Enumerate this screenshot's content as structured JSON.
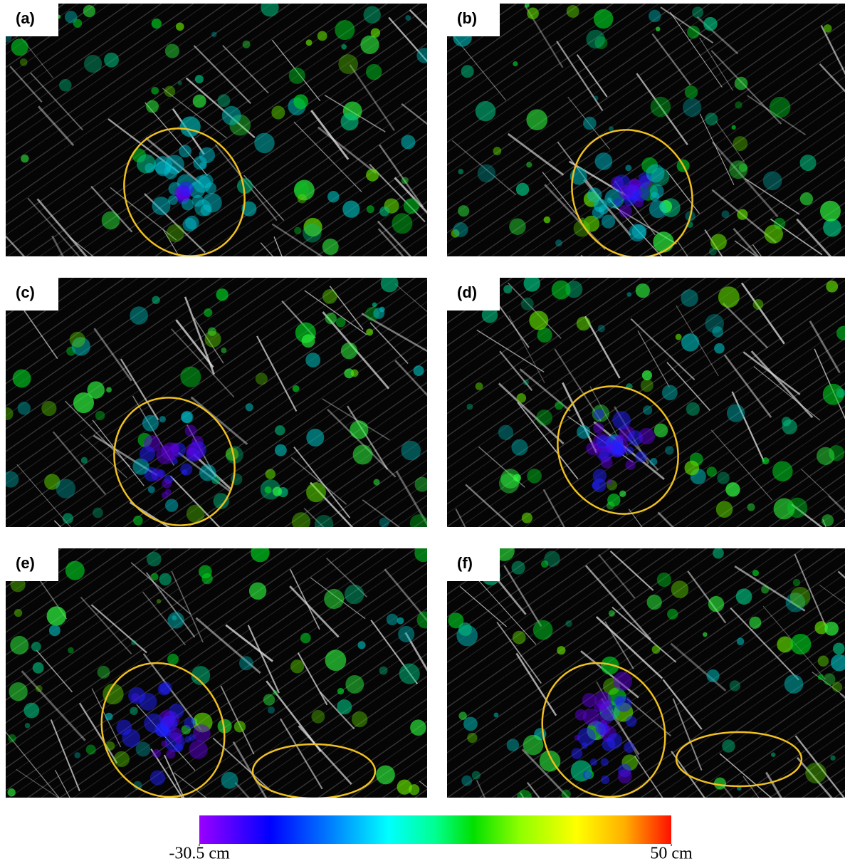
{
  "panels": [
    {
      "label": "(a)"
    },
    {
      "label": "(b)"
    },
    {
      "label": "(c)"
    },
    {
      "label": "(d)"
    },
    {
      "label": "(e)"
    },
    {
      "label": "(f)"
    }
  ],
  "colorbar": {
    "ticks": [
      {
        "value": -30.5,
        "label": "-30.5 cm"
      },
      {
        "value": 50,
        "label": "50 cm"
      }
    ]
  }
}
